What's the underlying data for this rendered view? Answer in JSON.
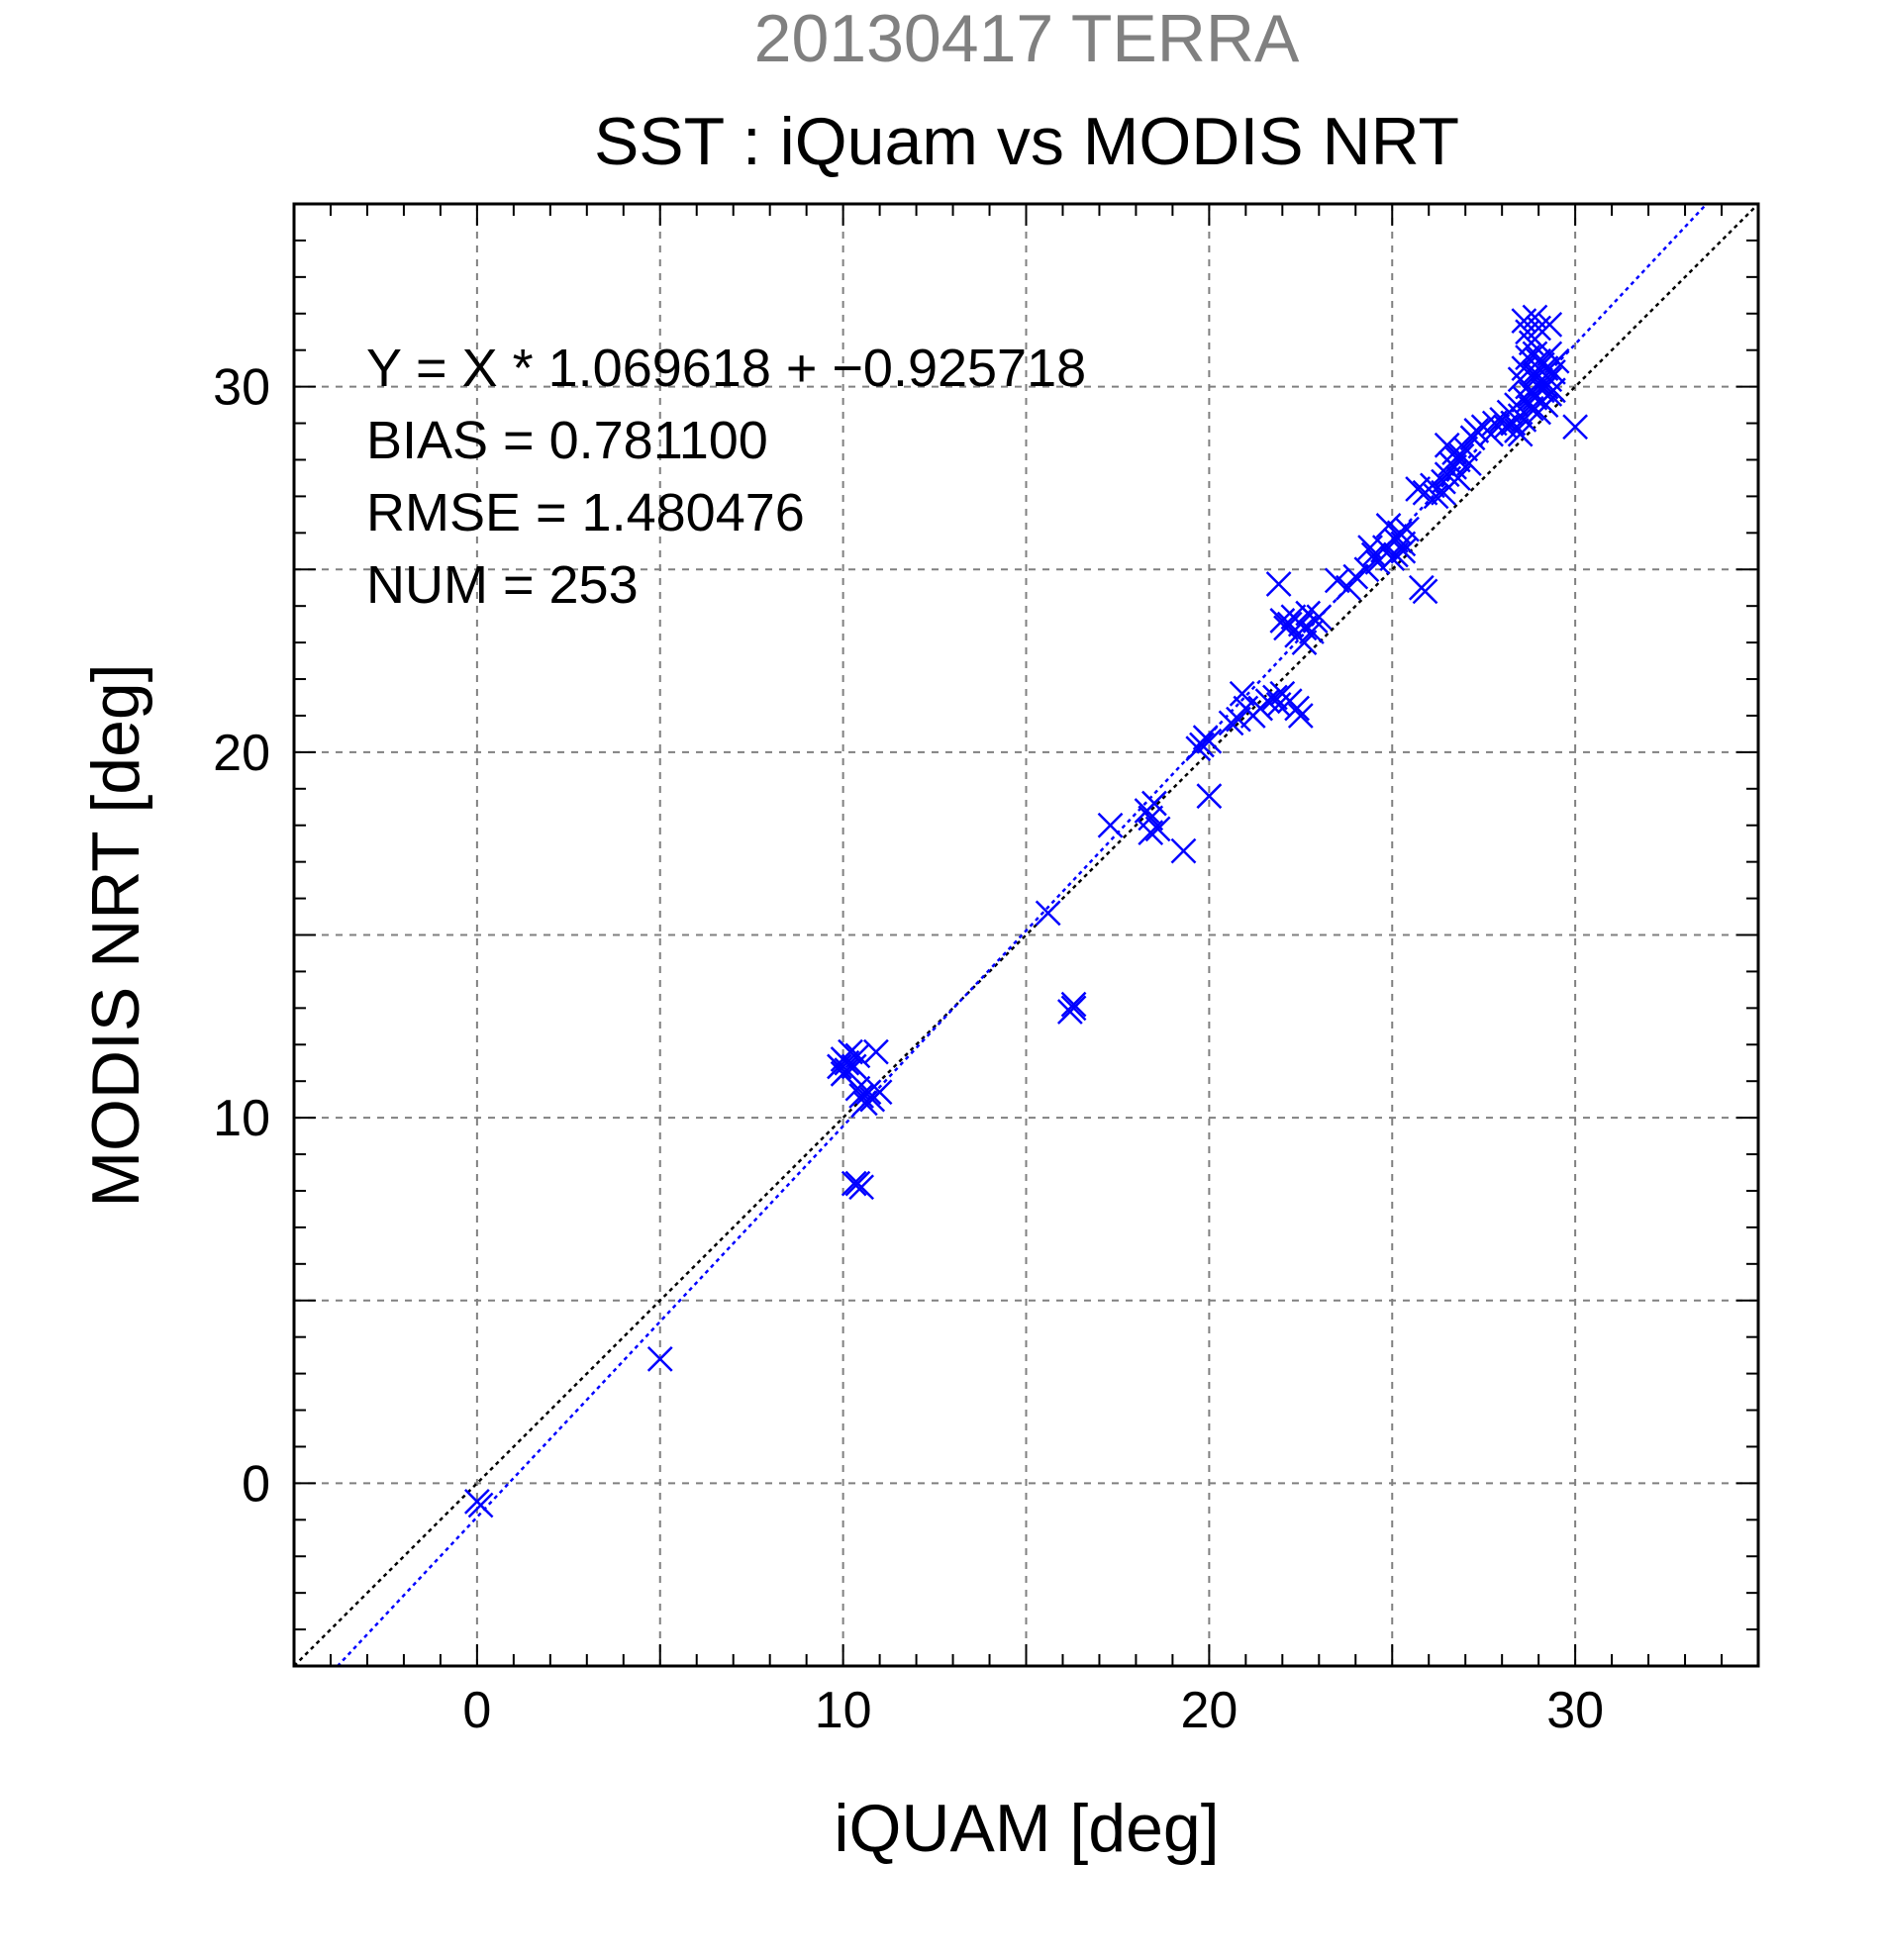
{
  "chart_data": {
    "type": "scatter",
    "title": "SST : iQuam vs MODIS NRT",
    "subtitle": "20130417 TERRA",
    "xlabel": "iQUAM [deg]",
    "ylabel": "MODIS NRT [deg]",
    "xlim": [
      -5,
      35
    ],
    "ylim": [
      -5,
      35
    ],
    "xticks": [
      0,
      10,
      20,
      30
    ],
    "yticks": [
      0,
      10,
      20,
      30
    ],
    "grid": true,
    "grid_step": 5,
    "minor_tick_step": 1,
    "colors": {
      "points": "#0000ff",
      "fit_line": "#0000ff",
      "identity_line": "#000000",
      "grid": "#808080",
      "subtitle": "#808080",
      "text": "#000000"
    },
    "stats_text": [
      "Y = X * 1.069618 + −0.925718",
      "BIAS = 0.781100",
      "RMSE = 1.480476",
      "NUM = 253"
    ],
    "fit": {
      "slope": 1.069618,
      "intercept": -0.925718
    },
    "identity": {
      "slope": 1,
      "intercept": 0
    },
    "marker": "x",
    "series": [
      {
        "points": [
          [
            0.0,
            -0.5
          ],
          [
            0.1,
            -0.6
          ],
          [
            5.0,
            3.4
          ],
          [
            9.9,
            11.4
          ],
          [
            10.0,
            11.6
          ],
          [
            10.1,
            11.5
          ],
          [
            10.2,
            11.8
          ],
          [
            10.3,
            11.4
          ],
          [
            10.4,
            11.7
          ],
          [
            10.1,
            11.3
          ],
          [
            10.0,
            11.2
          ],
          [
            10.4,
            10.8
          ],
          [
            10.5,
            10.6
          ],
          [
            10.7,
            10.7
          ],
          [
            10.8,
            10.5
          ],
          [
            11.0,
            10.7
          ],
          [
            10.9,
            11.8
          ],
          [
            10.6,
            10.4
          ],
          [
            10.4,
            8.2
          ],
          [
            10.5,
            8.1
          ],
          [
            10.3,
            8.2
          ],
          [
            15.6,
            15.6
          ],
          [
            16.3,
            13.0
          ],
          [
            16.2,
            12.9
          ],
          [
            16.3,
            13.1
          ],
          [
            17.3,
            18.0
          ],
          [
            18.3,
            18.4
          ],
          [
            18.5,
            18.6
          ],
          [
            18.4,
            17.8
          ],
          [
            18.6,
            17.9
          ],
          [
            18.4,
            18.2
          ],
          [
            19.3,
            17.3
          ],
          [
            19.8,
            20.2
          ],
          [
            19.9,
            20.4
          ],
          [
            20.0,
            20.3
          ],
          [
            19.7,
            20.1
          ],
          [
            20.0,
            18.8
          ],
          [
            20.6,
            20.8
          ],
          [
            20.8,
            20.9
          ],
          [
            21.0,
            21.2
          ],
          [
            21.2,
            21.0
          ],
          [
            20.9,
            21.6
          ],
          [
            21.4,
            21.2
          ],
          [
            21.6,
            21.4
          ],
          [
            21.8,
            21.5
          ],
          [
            22.0,
            21.6
          ],
          [
            22.2,
            21.4
          ],
          [
            22.4,
            21.2
          ],
          [
            22.5,
            21.0
          ],
          [
            21.9,
            21.3
          ],
          [
            21.9,
            24.6
          ],
          [
            22.0,
            23.6
          ],
          [
            22.1,
            23.4
          ],
          [
            22.3,
            23.7
          ],
          [
            22.4,
            23.2
          ],
          [
            22.5,
            23.5
          ],
          [
            22.6,
            23.0
          ],
          [
            22.7,
            23.8
          ],
          [
            22.8,
            23.3
          ],
          [
            22.9,
            23.6
          ],
          [
            22.2,
            23.5
          ],
          [
            22.6,
            23.4
          ],
          [
            23.0,
            23.7
          ],
          [
            23.5,
            24.7
          ],
          [
            23.8,
            24.5
          ],
          [
            24.0,
            24.8
          ],
          [
            24.3,
            25.0
          ],
          [
            24.5,
            25.4
          ],
          [
            24.6,
            25.2
          ],
          [
            24.8,
            25.6
          ],
          [
            25.0,
            25.3
          ],
          [
            25.1,
            25.8
          ],
          [
            25.2,
            26.0
          ],
          [
            25.3,
            25.7
          ],
          [
            25.4,
            26.1
          ],
          [
            24.4,
            25.6
          ],
          [
            25.1,
            25.4
          ],
          [
            24.9,
            26.2
          ],
          [
            25.3,
            25.5
          ],
          [
            25.8,
            24.5
          ],
          [
            25.9,
            24.4
          ],
          [
            25.7,
            27.2
          ],
          [
            25.9,
            27.1
          ],
          [
            26.1,
            27.3
          ],
          [
            26.2,
            27.0
          ],
          [
            26.4,
            27.4
          ],
          [
            26.5,
            27.6
          ],
          [
            26.7,
            27.8
          ],
          [
            26.8,
            28.0
          ],
          [
            27.0,
            28.3
          ],
          [
            26.9,
            28.1
          ],
          [
            26.6,
            27.9
          ],
          [
            26.5,
            28.4
          ],
          [
            26.7,
            28.2
          ],
          [
            26.8,
            27.5
          ],
          [
            27.1,
            27.9
          ],
          [
            27.2,
            28.6
          ],
          [
            26.4,
            27.1
          ],
          [
            27.3,
            28.8
          ],
          [
            27.5,
            28.9
          ],
          [
            27.7,
            28.7
          ],
          [
            27.8,
            29.0
          ],
          [
            28.0,
            29.1
          ],
          [
            28.1,
            28.9
          ],
          [
            28.2,
            29.3
          ],
          [
            28.3,
            29.0
          ],
          [
            28.4,
            29.5
          ],
          [
            28.5,
            29.2
          ],
          [
            28.6,
            29.7
          ],
          [
            28.7,
            30.0
          ],
          [
            28.8,
            29.8
          ],
          [
            28.9,
            30.3
          ],
          [
            29.0,
            30.1
          ],
          [
            29.1,
            29.9
          ],
          [
            29.2,
            30.5
          ],
          [
            29.3,
            30.2
          ],
          [
            29.0,
            30.7
          ],
          [
            28.9,
            30.9
          ],
          [
            28.8,
            31.2
          ],
          [
            28.7,
            31.5
          ],
          [
            28.6,
            31.8
          ],
          [
            28.9,
            31.9
          ],
          [
            29.0,
            31.6
          ],
          [
            29.3,
            31.7
          ],
          [
            28.5,
            30.2
          ],
          [
            28.6,
            30.5
          ],
          [
            28.7,
            30.8
          ],
          [
            28.9,
            30.4
          ],
          [
            29.1,
            30.6
          ],
          [
            29.2,
            30.0
          ],
          [
            29.3,
            29.8
          ],
          [
            29.4,
            30.4
          ],
          [
            29.5,
            30.7
          ],
          [
            29.1,
            29.6
          ],
          [
            28.8,
            29.4
          ],
          [
            28.6,
            29.1
          ],
          [
            29.0,
            29.3
          ],
          [
            28.4,
            28.8
          ],
          [
            28.3,
            29.0
          ],
          [
            28.5,
            28.7
          ],
          [
            29.2,
            29.5
          ],
          [
            29.4,
            29.9
          ],
          [
            28.9,
            29.7
          ],
          [
            28.7,
            29.6
          ],
          [
            29.3,
            30.9
          ],
          [
            30.0,
            28.9
          ]
        ]
      }
    ]
  }
}
